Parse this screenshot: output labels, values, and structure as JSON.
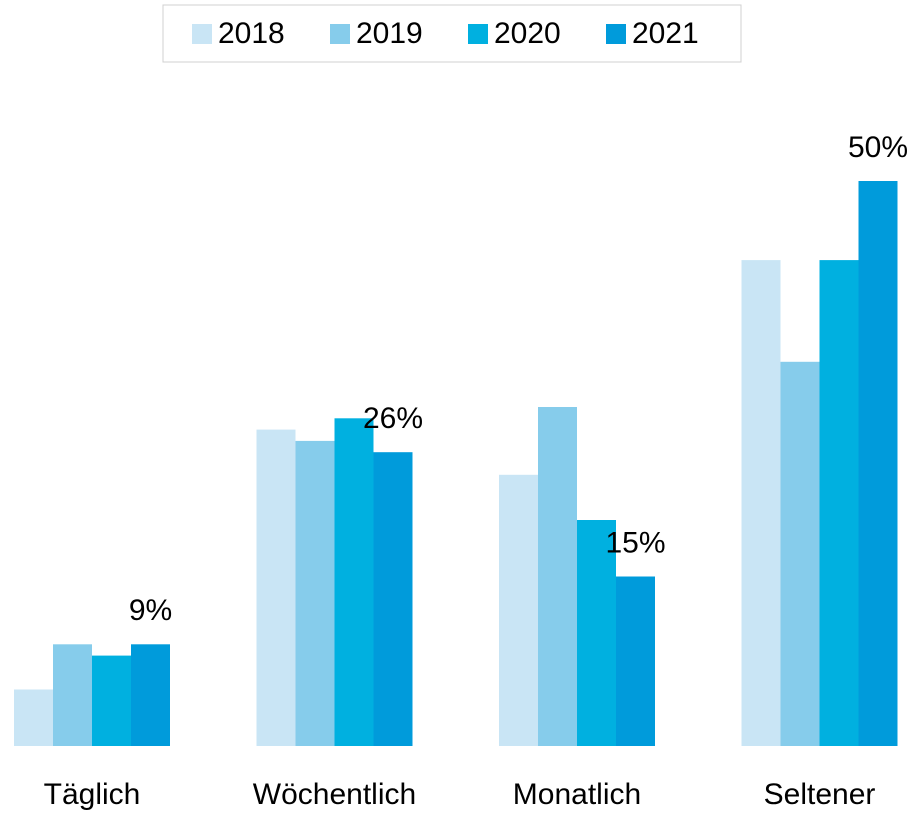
{
  "chart_data": {
    "type": "bar",
    "categories": [
      "Täglich",
      "Wöchentlich",
      "Monatlich",
      "Seltener"
    ],
    "series": [
      {
        "name": "2018",
        "color": "#c9e5f5",
        "values": [
          5,
          28,
          24,
          43
        ]
      },
      {
        "name": "2019",
        "color": "#86cceb",
        "values": [
          9,
          27,
          30,
          34
        ]
      },
      {
        "name": "2020",
        "color": "#00b0e0",
        "values": [
          8,
          29,
          20,
          43
        ]
      },
      {
        "name": "2021",
        "color": "#009bdb",
        "values": [
          9,
          26,
          15,
          50
        ],
        "value_labels": [
          "9%",
          "26%",
          "15%",
          "50%"
        ]
      }
    ],
    "legend": "top"
  }
}
